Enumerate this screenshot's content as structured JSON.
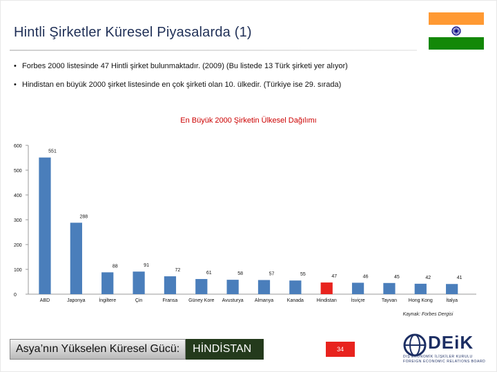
{
  "header": {
    "title": "Hintli Şirketler Küresel Piyasalarda (1)"
  },
  "flag": {
    "saffron": "#ff9933",
    "white": "#ffffff",
    "green": "#138808",
    "chakra": "#000080",
    "icon": "india-flag-icon"
  },
  "bullets": [
    "Forbes 2000 listesinde 47 Hintli şirket bulunmaktadır. (2009) (Bu listede 13 Türk şirketi yer alıyor)",
    "Hindistan en büyük 2000 şirket listesinde en çok şirketi olan 10. ülkedir. (Türkiye ise 29. sırada)"
  ],
  "bullet_marker": "•",
  "chart_data": {
    "type": "bar",
    "title": "En Büyük 2000 Şirketin Ülkesel Dağılımı",
    "categories": [
      "ABD",
      "Japonya",
      "İngiltere",
      "Çin",
      "Fransa",
      "Güney Kore",
      "Avusturya",
      "Almanya",
      "Kanada",
      "Hindistan",
      "İsviçre",
      "Tayvan",
      "Hong Kong",
      "İtalya"
    ],
    "values": [
      551,
      288,
      88,
      91,
      72,
      61,
      58,
      57,
      55,
      47,
      46,
      45,
      42,
      41
    ],
    "value_labels": [
      "551",
      "288",
      "88",
      "91",
      "72",
      "61",
      "58",
      "57",
      "55",
      "47",
      "46",
      "45",
      "42",
      "41"
    ],
    "yticks": [
      0,
      100,
      200,
      300,
      400,
      500,
      600
    ],
    "ytick_labels": [
      "0",
      "100",
      "200",
      "300",
      "400",
      "500",
      "600"
    ],
    "ylim": [
      0,
      600
    ],
    "xlabel": "",
    "ylabel": "",
    "grid": false,
    "bar_color": "#4a7ebb",
    "highlight_color": "#e8231e",
    "highlight_category": "Hindistan"
  },
  "source": "Kaynak: Forbes Dergisi",
  "footer": {
    "banner_left": "Asya’nın Yükselen Küresel Gücü:",
    "banner_right": "HİNDİSTAN",
    "page_number": "34"
  },
  "logo": {
    "word": "DEiK",
    "line1": "DIŞ EKONOMİK İLİŞKİLER KURULU",
    "line2": "FOREIGN ECONOMIC RELATIONS BOARD",
    "color": "#1c2e63"
  }
}
